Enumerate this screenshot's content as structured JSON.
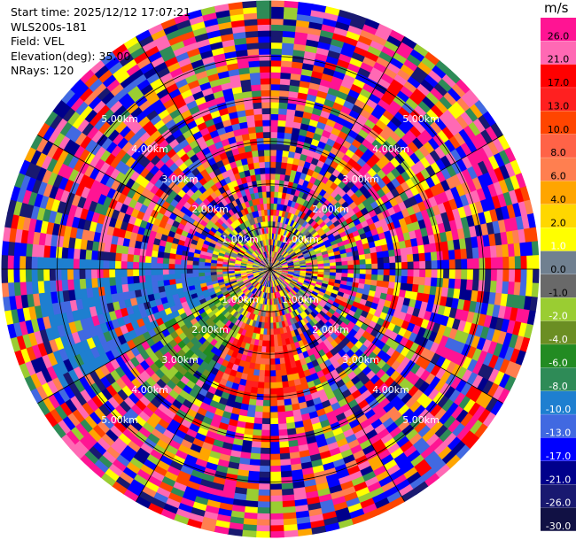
{
  "info": {
    "start_time": "Start time: 2025/12/12 17:07:21",
    "device": "WLS200s-181",
    "field": "Field: VEL",
    "elevation": "Elevation(deg): 35.00",
    "nrays": "NRays: 120"
  },
  "chart_data": {
    "type": "heatmap",
    "projection": "polar",
    "title": "",
    "range_rings": [
      "1.00km",
      "2.00km",
      "3.00km",
      "4.00km",
      "5.00km"
    ],
    "ring_label_positions": [
      "top-left",
      "top-right",
      "bottom-left",
      "bottom-right"
    ],
    "radial_lines_every_deg": 30,
    "n_rays": 120,
    "n_gates": 45,
    "max_range_km": 6.3,
    "colorbar": {
      "unit": "m/s",
      "tick_labels": [
        "26.0",
        "21.0",
        "17.0",
        "13.0",
        "10.0",
        "8.0",
        "6.0",
        "4.0",
        "2.0",
        "1.0",
        "0.0",
        "-1.0",
        "-2.0",
        "-4.0",
        "-6.0",
        "-8.0",
        "-10.0",
        "-13.0",
        "-17.0",
        "-21.0",
        "-26.0",
        "-30.0"
      ],
      "colors": [
        "#ff1493",
        "#ff69b4",
        "#ff0000",
        "#ff2020",
        "#ff4500",
        "#ff6347",
        "#ff7f50",
        "#ffa500",
        "#ffd700",
        "#ffff00",
        "#708090",
        "#696969",
        "#9acd32",
        "#6b8e23",
        "#228b22",
        "#2e8b57",
        "#1e7fd0",
        "#4169e1",
        "#0000ff",
        "#00008b",
        "#191970",
        "#111144"
      ]
    }
  }
}
